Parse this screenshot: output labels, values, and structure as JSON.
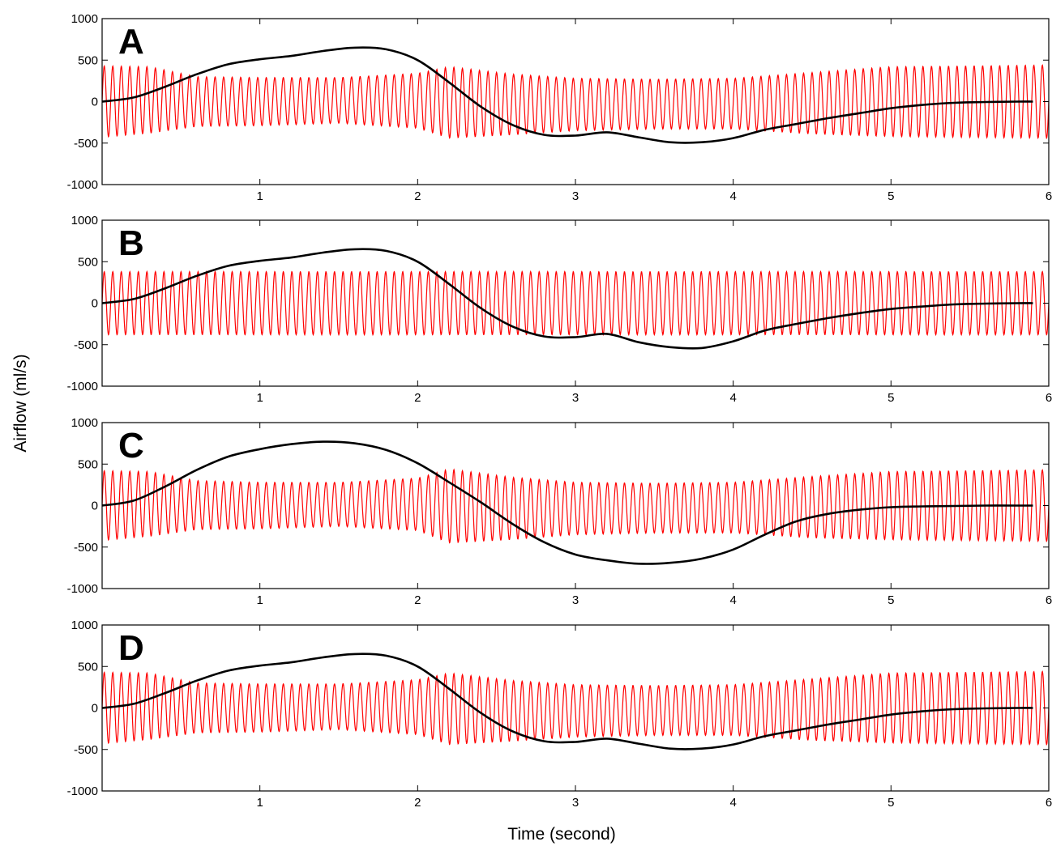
{
  "chart_data": {
    "type": "line",
    "xlabel": "Time (second)",
    "ylabel": "Airflow (ml/s)",
    "xlim": [
      0,
      6
    ],
    "ylim": [
      -1000,
      1000
    ],
    "x_ticks": [
      1,
      2,
      3,
      4,
      5,
      6
    ],
    "y_ticks": [
      1000,
      500,
      0,
      -500,
      -1000
    ],
    "grid": false,
    "oscillation_frequency_hz": 18.5,
    "panels": [
      {
        "label": "A",
        "breathing_flow": {
          "color": "#000000",
          "x": [
            0,
            0.2,
            0.4,
            0.6,
            0.8,
            1.0,
            1.2,
            1.4,
            1.6,
            1.8,
            2.0,
            2.2,
            2.4,
            2.6,
            2.8,
            3.0,
            3.2,
            3.4,
            3.6,
            3.8,
            4.0,
            4.2,
            4.4,
            4.6,
            4.8,
            5.0,
            5.2,
            5.4,
            5.6,
            5.8,
            5.9
          ],
          "y": [
            0,
            50,
            180,
            330,
            450,
            510,
            550,
            610,
            650,
            630,
            500,
            230,
            -60,
            -280,
            -400,
            -410,
            -370,
            -430,
            -490,
            -490,
            -440,
            -340,
            -270,
            -200,
            -140,
            -80,
            -40,
            -15,
            -5,
            0,
            0
          ]
        },
        "oscillatory_flow": {
          "color": "#ff0000",
          "x": [
            0,
            0.3,
            0.6,
            1.0,
            1.5,
            2.0,
            2.2,
            2.6,
            3.0,
            3.5,
            4.0,
            4.5,
            5.0,
            5.5,
            6.0
          ],
          "upper": [
            430,
            420,
            300,
            290,
            290,
            340,
            420,
            330,
            280,
            270,
            280,
            350,
            420,
            430,
            440
          ],
          "lower": [
            -430,
            -380,
            -300,
            -290,
            -260,
            -320,
            -440,
            -400,
            -350,
            -330,
            -330,
            -390,
            -420,
            -430,
            -440
          ]
        }
      },
      {
        "label": "B",
        "breathing_flow": {
          "color": "#000000",
          "x": [
            0,
            0.2,
            0.4,
            0.6,
            0.8,
            1.0,
            1.2,
            1.4,
            1.6,
            1.8,
            2.0,
            2.2,
            2.4,
            2.6,
            2.8,
            3.0,
            3.2,
            3.4,
            3.6,
            3.8,
            4.0,
            4.2,
            4.4,
            4.6,
            4.8,
            5.0,
            5.2,
            5.4,
            5.6,
            5.8,
            5.9
          ],
          "y": [
            0,
            50,
            180,
            330,
            450,
            510,
            550,
            610,
            650,
            630,
            500,
            230,
            -60,
            -280,
            -400,
            -410,
            -370,
            -470,
            -530,
            -540,
            -460,
            -330,
            -250,
            -180,
            -120,
            -70,
            -40,
            -15,
            -5,
            0,
            0
          ]
        },
        "oscillatory_flow": {
          "color": "#ff0000",
          "x": [
            0,
            6.0
          ],
          "upper": [
            380,
            380
          ],
          "lower": [
            -380,
            -380
          ]
        }
      },
      {
        "label": "C",
        "breathing_flow": {
          "color": "#000000",
          "x": [
            0,
            0.2,
            0.4,
            0.6,
            0.8,
            1.0,
            1.2,
            1.4,
            1.6,
            1.8,
            2.0,
            2.2,
            2.4,
            2.6,
            2.8,
            3.0,
            3.2,
            3.4,
            3.6,
            3.8,
            4.0,
            4.2,
            4.4,
            4.6,
            4.8,
            5.0,
            5.2,
            5.4,
            5.6,
            5.8,
            5.9
          ],
          "y": [
            0,
            60,
            230,
            430,
            590,
            680,
            740,
            770,
            750,
            670,
            510,
            280,
            40,
            -220,
            -440,
            -590,
            -660,
            -700,
            -690,
            -640,
            -530,
            -350,
            -190,
            -100,
            -50,
            -20,
            -10,
            -5,
            0,
            0,
            0
          ]
        },
        "oscillatory_flow": {
          "color": "#ff0000",
          "x": [
            0,
            0.3,
            0.6,
            1.0,
            1.5,
            2.0,
            2.2,
            2.6,
            3.0,
            3.5,
            4.0,
            4.5,
            5.0,
            5.5,
            6.0
          ],
          "upper": [
            420,
            410,
            300,
            280,
            280,
            330,
            440,
            340,
            280,
            270,
            280,
            350,
            410,
            420,
            430
          ],
          "lower": [
            -420,
            -370,
            -290,
            -280,
            -250,
            -300,
            -450,
            -410,
            -350,
            -330,
            -330,
            -390,
            -410,
            -420,
            -430
          ]
        }
      },
      {
        "label": "D",
        "breathing_flow": {
          "color": "#000000",
          "x": [
            0,
            0.2,
            0.4,
            0.6,
            0.8,
            1.0,
            1.2,
            1.4,
            1.6,
            1.8,
            2.0,
            2.2,
            2.4,
            2.6,
            2.8,
            3.0,
            3.2,
            3.4,
            3.6,
            3.8,
            4.0,
            4.2,
            4.4,
            4.6,
            4.8,
            5.0,
            5.2,
            5.4,
            5.6,
            5.8,
            5.9
          ],
          "y": [
            0,
            50,
            180,
            330,
            450,
            510,
            550,
            610,
            650,
            630,
            500,
            230,
            -60,
            -280,
            -400,
            -410,
            -370,
            -430,
            -490,
            -490,
            -440,
            -340,
            -270,
            -200,
            -140,
            -80,
            -40,
            -15,
            -5,
            0,
            0
          ]
        },
        "oscillatory_flow": {
          "color": "#ff0000",
          "x": [
            0,
            0.3,
            0.6,
            1.0,
            1.5,
            2.0,
            2.2,
            2.6,
            3.0,
            3.5,
            4.0,
            4.5,
            5.0,
            5.5,
            6.0
          ],
          "upper": [
            430,
            420,
            300,
            290,
            290,
            340,
            420,
            330,
            280,
            270,
            280,
            350,
            420,
            430,
            440
          ],
          "lower": [
            -430,
            -380,
            -300,
            -290,
            -260,
            -320,
            -440,
            -400,
            -350,
            -330,
            -330,
            -390,
            -420,
            -430,
            -440
          ]
        }
      }
    ]
  }
}
